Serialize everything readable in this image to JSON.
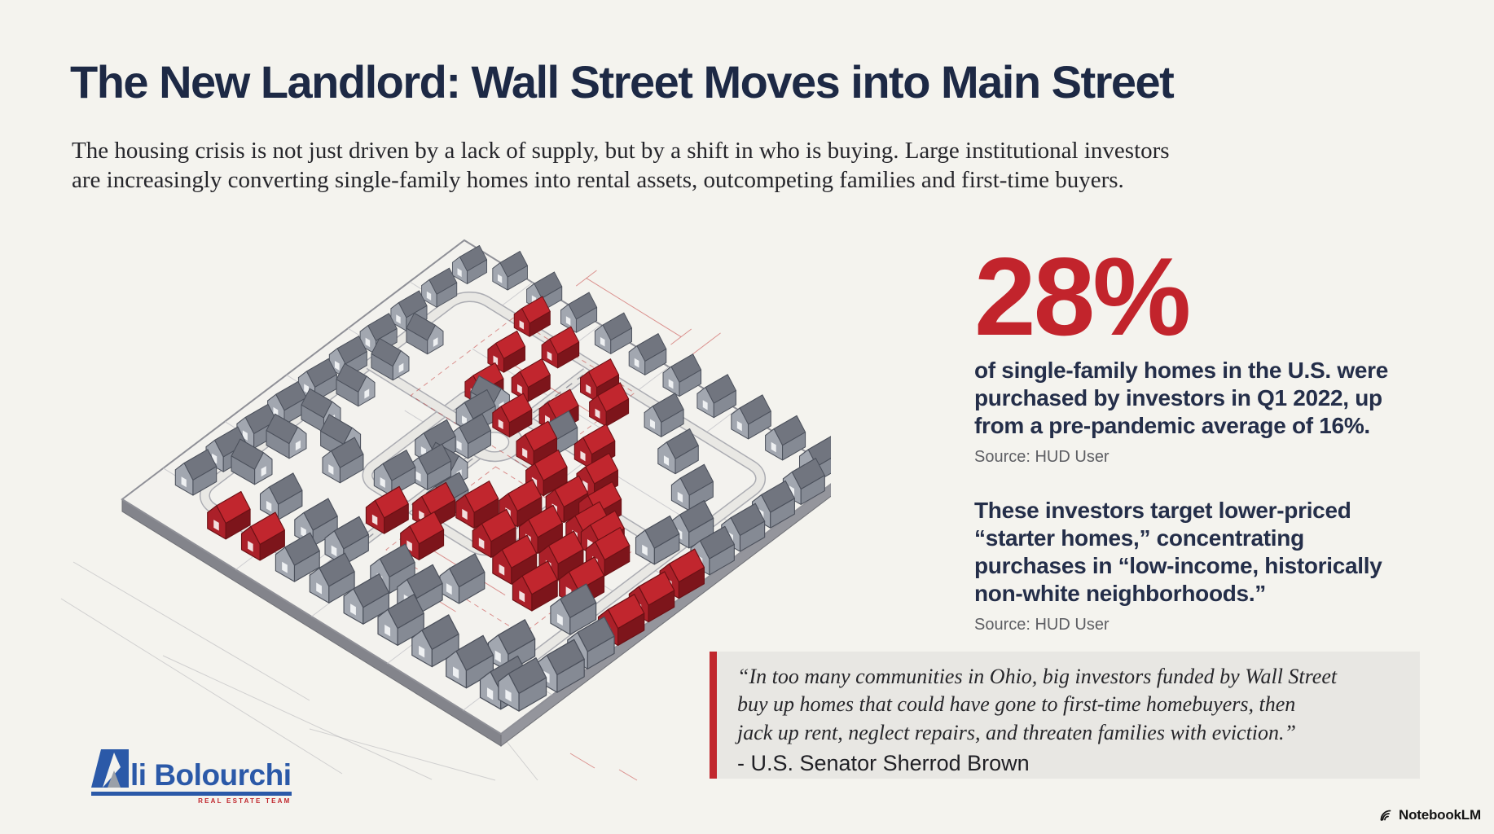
{
  "header": {
    "title": "The New Landlord: Wall Street Moves into Main Street",
    "subtitle_lines": [
      "The housing crisis is not just driven by a lack of supply, but by a shift in who is buying. Large institutional investors",
      "are increasingly converting single-family homes into rental assets, outcompeting families and first-time buyers."
    ]
  },
  "stats": {
    "stat1": {
      "value": "28%",
      "lines": [
        "of single-family homes in the U.S. were",
        "purchased by investors in Q1 2022, up",
        "from a pre-pandemic average of 16%."
      ],
      "source": "Source: HUD User"
    },
    "stat2": {
      "lines": [
        "These investors target lower-priced",
        "“starter homes,” concentrating",
        "purchases in “low-income, historically",
        "non-white neighborhoods.”"
      ],
      "source": "Source: HUD User"
    }
  },
  "quote": {
    "lines": [
      "“In too many communities in Ohio, big investors funded by Wall Street",
      "buy up homes that could have gone to first-time homebuyers, then",
      "jack up rent, neglect repairs, and threaten families with eviction.”"
    ],
    "attribution": "- U.S. Senator Sherrod Brown"
  },
  "branding": {
    "logo_first_letter": "A",
    "logo_rest": "li Bolourchi",
    "logo_tagline": "REAL ESTATE TEAM",
    "watermark": "NotebookLM"
  },
  "colors": {
    "background": "#f4f3ee",
    "title_navy": "#1d2945",
    "accent_red": "#c2242c",
    "logo_blue": "#2b59a8",
    "quote_background": "#e8e7e3",
    "house_standard": "#8b909a",
    "house_investor": "#c1262e"
  },
  "illustration": {
    "house_colors": {
      "standard": "g",
      "investor_owned": "r"
    },
    "houses": [
      [
        0.05,
        0.9,
        "g"
      ],
      [
        0.05,
        0.81,
        "g"
      ],
      [
        0.05,
        0.72,
        "g"
      ],
      [
        0.05,
        0.63,
        "g"
      ],
      [
        0.05,
        0.54,
        "g"
      ],
      [
        0.05,
        0.45,
        "g"
      ],
      [
        0.05,
        0.36,
        "g"
      ],
      [
        0.05,
        0.27,
        "g"
      ],
      [
        0.05,
        0.18,
        "g"
      ],
      [
        0.05,
        0.09,
        "g"
      ],
      [
        0.12,
        0.05,
        "g"
      ],
      [
        0.21,
        0.05,
        "g"
      ],
      [
        0.3,
        0.05,
        "g"
      ],
      [
        0.39,
        0.05,
        "g"
      ],
      [
        0.48,
        0.05,
        "g"
      ],
      [
        0.57,
        0.05,
        "g"
      ],
      [
        0.66,
        0.05,
        "g"
      ],
      [
        0.75,
        0.05,
        "g"
      ],
      [
        0.84,
        0.05,
        "g"
      ],
      [
        0.93,
        0.05,
        "g"
      ],
      [
        0.95,
        0.12,
        "g"
      ],
      [
        0.95,
        0.21,
        "g"
      ],
      [
        0.95,
        0.3,
        "g"
      ],
      [
        0.95,
        0.39,
        "g"
      ],
      [
        0.95,
        0.48,
        "r"
      ],
      [
        0.95,
        0.57,
        "r"
      ],
      [
        0.95,
        0.66,
        "r"
      ],
      [
        0.95,
        0.75,
        "g"
      ],
      [
        0.95,
        0.84,
        "g"
      ],
      [
        0.93,
        0.93,
        "g"
      ],
      [
        0.9,
        0.95,
        "g"
      ],
      [
        0.81,
        0.95,
        "g"
      ],
      [
        0.72,
        0.95,
        "g"
      ],
      [
        0.63,
        0.95,
        "g"
      ],
      [
        0.54,
        0.95,
        "g"
      ],
      [
        0.45,
        0.95,
        "g"
      ],
      [
        0.36,
        0.95,
        "g"
      ],
      [
        0.27,
        0.95,
        "r"
      ],
      [
        0.18,
        0.95,
        "r"
      ],
      [
        0.17,
        0.25,
        "g",
        1
      ],
      [
        0.17,
        0.35,
        "g",
        1
      ],
      [
        0.17,
        0.45,
        "g",
        1
      ],
      [
        0.17,
        0.55,
        "g",
        1
      ],
      [
        0.17,
        0.65,
        "g",
        1
      ],
      [
        0.17,
        0.75,
        "g",
        1
      ],
      [
        0.34,
        0.4,
        "g"
      ],
      [
        0.34,
        0.52,
        "g"
      ],
      [
        0.34,
        0.64,
        "g"
      ],
      [
        0.25,
        0.58,
        "g",
        1
      ],
      [
        0.24,
        0.68,
        "g"
      ],
      [
        0.39,
        0.3,
        "g",
        1
      ],
      [
        0.5,
        0.34,
        "g"
      ],
      [
        0.38,
        0.46,
        "g"
      ],
      [
        0.46,
        0.5,
        "g",
        1
      ],
      [
        0.38,
        0.58,
        "g"
      ],
      [
        0.46,
        0.62,
        "g"
      ],
      [
        0.24,
        0.12,
        "r"
      ],
      [
        0.34,
        0.15,
        "r"
      ],
      [
        0.46,
        0.17,
        "r"
      ],
      [
        0.52,
        0.21,
        "r"
      ],
      [
        0.27,
        0.23,
        "r"
      ],
      [
        0.36,
        0.26,
        "r"
      ],
      [
        0.46,
        0.29,
        "r"
      ],
      [
        0.3,
        0.33,
        "r"
      ],
      [
        0.4,
        0.36,
        "r"
      ],
      [
        0.49,
        0.39,
        "r"
      ],
      [
        0.58,
        0.32,
        "r"
      ],
      [
        0.64,
        0.38,
        "r"
      ],
      [
        0.7,
        0.44,
        "r"
      ],
      [
        0.76,
        0.5,
        "r"
      ],
      [
        0.62,
        0.16,
        "g"
      ],
      [
        0.71,
        0.22,
        "g"
      ],
      [
        0.8,
        0.28,
        "g"
      ],
      [
        0.87,
        0.36,
        "g"
      ],
      [
        0.85,
        0.44,
        "g"
      ],
      [
        0.84,
        0.86,
        "g"
      ],
      [
        0.56,
        0.44,
        "r"
      ],
      [
        0.64,
        0.47,
        "r"
      ],
      [
        0.72,
        0.5,
        "r"
      ],
      [
        0.8,
        0.53,
        "r"
      ],
      [
        0.58,
        0.54,
        "r"
      ],
      [
        0.66,
        0.57,
        "r"
      ],
      [
        0.74,
        0.6,
        "r"
      ],
      [
        0.82,
        0.63,
        "r"
      ],
      [
        0.6,
        0.64,
        "r"
      ],
      [
        0.68,
        0.67,
        "r"
      ],
      [
        0.76,
        0.7,
        "r"
      ],
      [
        0.52,
        0.6,
        "r"
      ],
      [
        0.46,
        0.66,
        "r"
      ],
      [
        0.4,
        0.73,
        "r"
      ],
      [
        0.5,
        0.74,
        "r"
      ],
      [
        0.86,
        0.7,
        "g"
      ],
      [
        0.64,
        0.78,
        "g"
      ],
      [
        0.22,
        0.84,
        "g"
      ],
      [
        0.32,
        0.85,
        "g"
      ],
      [
        0.4,
        0.85,
        "g"
      ],
      [
        0.52,
        0.85,
        "g"
      ],
      [
        0.6,
        0.86,
        "g"
      ]
    ]
  }
}
